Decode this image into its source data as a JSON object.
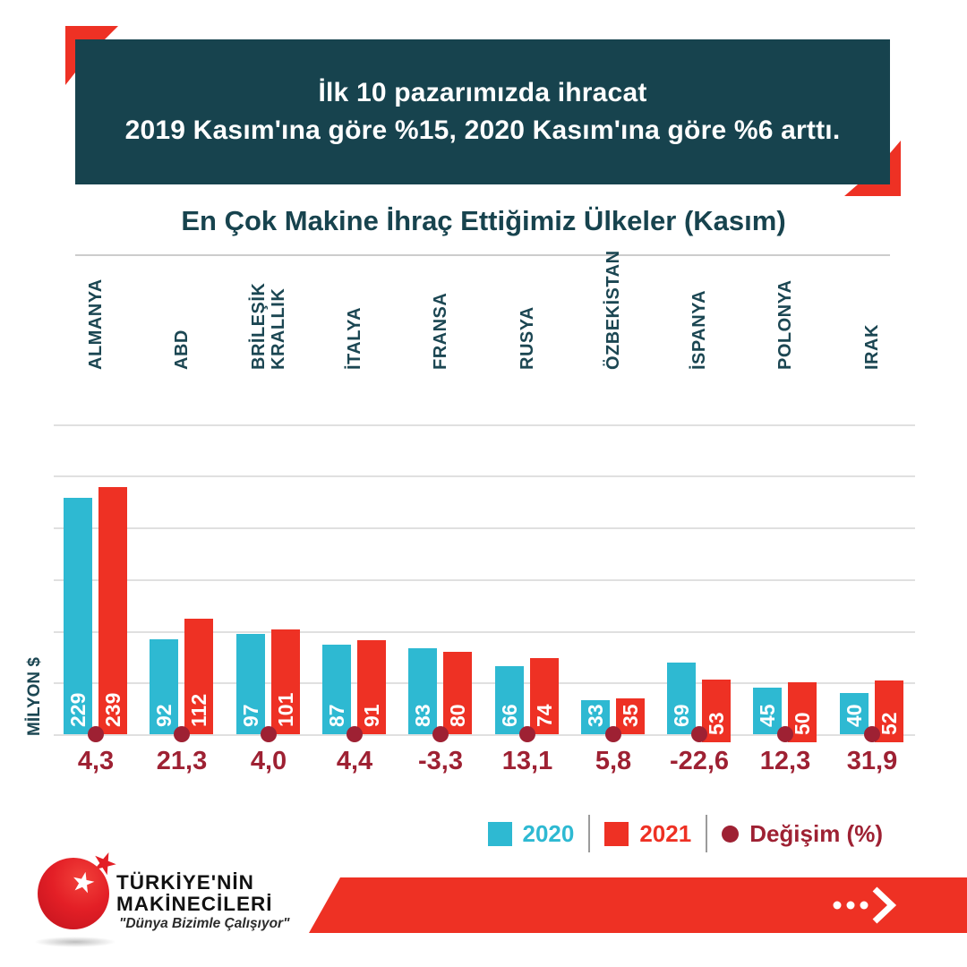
{
  "header": {
    "line1": "İlk 10 pazarımızda ihracat",
    "line2": "2019 Kasım'ına göre %15, 2020 Kasım'ına göre %6 arttı."
  },
  "chart_data": {
    "type": "bar",
    "title": "En Çok Makine İhraç Ettiğimiz Ülkeler (Kasım)",
    "ylabel": "MİLYON $",
    "categories": [
      "ALMANYA",
      "ABD",
      "BRİLEŞİK\nKRALLIK",
      "İTALYA",
      "FRANSA",
      "RUSYA",
      "ÖZBEKİSTAN",
      "İSPANYA",
      "POLONYA",
      "IRAK"
    ],
    "series": [
      {
        "name": "2020",
        "color": "#2eb9d2",
        "values": [
          229,
          92,
          97,
          87,
          83,
          66,
          33,
          69,
          45,
          40
        ]
      },
      {
        "name": "2021",
        "color": "#ee3124",
        "values": [
          239,
          112,
          101,
          91,
          80,
          74,
          35,
          53,
          50,
          52
        ]
      }
    ],
    "change": {
      "name": "Değişim (%)",
      "color": "#9e2133",
      "values": [
        "4,3",
        "21,3",
        "4,0",
        "4,4",
        "-3,3",
        "13,1",
        "5,8",
        "-22,6",
        "12,3",
        "31,9"
      ]
    },
    "ylim": [
      0,
      300
    ],
    "grid_step": 50,
    "grid": true,
    "legend_position": "bottom-right"
  },
  "legend": {
    "items": [
      {
        "label": "2020",
        "marker": "square",
        "color": "#2eb9d2"
      },
      {
        "label": "2021",
        "marker": "square",
        "color": "#ee3124"
      },
      {
        "label": "Değişim (%)",
        "marker": "circle",
        "color": "#9e2133"
      }
    ]
  },
  "footer": {
    "brand_line1": "TÜRKİYE'NİN",
    "brand_line2": "MAKİNECİLERİ",
    "tagline": "\"Dünya Bizimle Çalışıyor\""
  },
  "colors": {
    "teal": "#17434e",
    "red": "#ee3124",
    "cyan": "#2eb9d2",
    "maroon": "#9e2133",
    "grid": "#e0e0e0"
  }
}
